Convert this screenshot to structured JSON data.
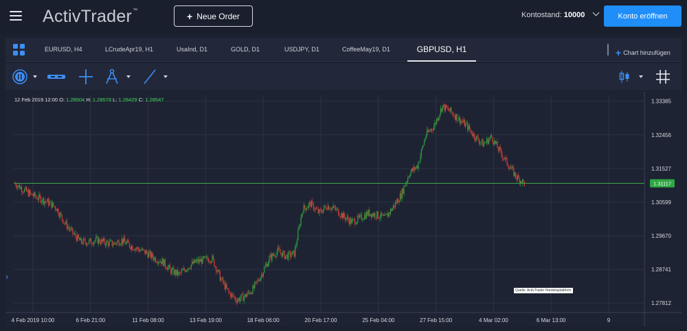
{
  "app": {
    "logo_text": "ActivTrader",
    "logo_tm": "™",
    "new_order_label": "Neue Order",
    "account_label": "Kontostand:",
    "account_value": "10000",
    "open_account_label": "Konto eröffnen",
    "colors": {
      "accent": "#1f8ef8",
      "background": "#1c2130",
      "bull": "#2e9e3e",
      "bear": "#d33a3a",
      "price_line": "#3aa848"
    }
  },
  "tabs": [
    {
      "label": "EURUSD, H4"
    },
    {
      "label": "LCrudeApr19, H1"
    },
    {
      "label": "UsaInd, D1"
    },
    {
      "label": "GOLD, D1"
    },
    {
      "label": "USDJPY, D1"
    },
    {
      "label": "CoffeeMay19, D1"
    },
    {
      "label": "GBPUSD, H1",
      "active": true
    }
  ],
  "add_chart_label": "Chart hinzufügen",
  "toolbar": {
    "icons": [
      "timeframe-icon",
      "indicator-icon",
      "crosshair-icon",
      "drawing-tools-icon",
      "line-tool-icon",
      "chart-type-icon",
      "grid-icon"
    ]
  },
  "ohlc": {
    "date": "12 Feb 2019 12:00",
    "o_label": "O:",
    "o": "1.28504",
    "h_label": "H:",
    "h": "1.28578",
    "l_label": "L:",
    "l": "1.28429",
    "c_label": "C:",
    "c": "1.28547"
  },
  "source_note": "Quelle: ActivTrader Handelsplattform",
  "chart_data": {
    "type": "candlestick",
    "symbol": "GBPUSD",
    "timeframe": "H1",
    "current_price": "1.31117",
    "y_ticks": [
      "1.33385",
      "1.32456",
      "1.31527",
      "1.30599",
      "1.29670",
      "1.28741",
      "1.27812"
    ],
    "x_ticks": [
      "4 Feb 2019 10:00",
      "6 Feb 21:00",
      "11 Feb 08:00",
      "13 Feb 19:00",
      "18 Feb 06:00",
      "20 Feb 17:00",
      "25 Feb 04:00",
      "27 Feb 15:00",
      "4 Mar 02:00",
      "6 Mar 13:00",
      "9"
    ],
    "ylim": [
      1.2755,
      1.3355
    ],
    "grid": true,
    "path_closes": [
      1.3112,
      1.3095,
      1.308,
      1.307,
      1.306,
      1.3045,
      1.3005,
      1.2975,
      1.295,
      1.295,
      1.2955,
      1.2948,
      1.2945,
      1.2955,
      1.294,
      1.293,
      1.292,
      1.2905,
      1.2895,
      1.287,
      1.286,
      1.288,
      1.2895,
      1.29,
      1.2905,
      1.285,
      1.281,
      1.279,
      1.28,
      1.282,
      1.286,
      1.2905,
      1.2925,
      1.291,
      1.2918,
      1.304,
      1.3055,
      1.303,
      1.305,
      1.304,
      1.302,
      1.3005,
      1.3015,
      1.303,
      1.3025,
      1.3015,
      1.3045,
      1.308,
      1.314,
      1.316,
      1.3245,
      1.327,
      1.3325,
      1.331,
      1.329,
      1.327,
      1.324,
      1.322,
      1.324,
      1.32,
      1.3165,
      1.313,
      1.3112
    ]
  }
}
